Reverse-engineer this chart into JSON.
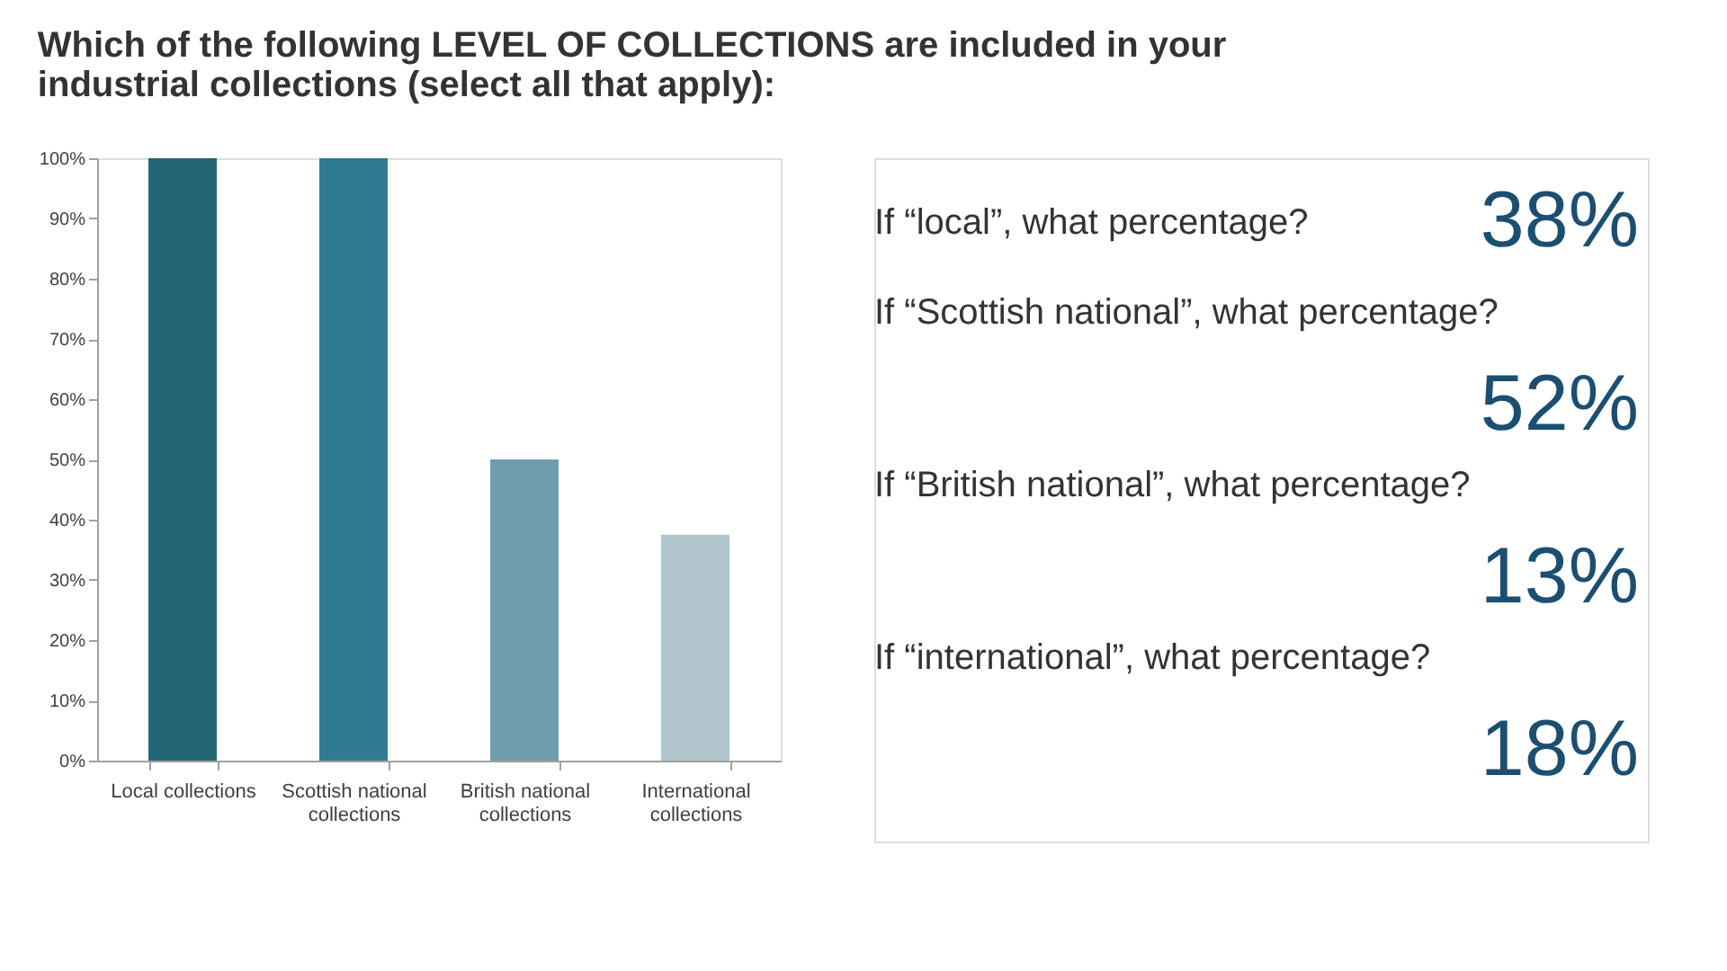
{
  "chart_data": [
    {
      "type": "bar",
      "title": "Which of the following LEVEL OF COLLECTIONS are included in your industrial collections (select all that apply):",
      "categories": [
        "Local collections",
        "Scottish national collections",
        "British national collections",
        "International collections"
      ],
      "values": [
        100,
        100,
        50,
        37.5
      ],
      "colors": [
        "#236674",
        "#2f7b91",
        "#6f9dae",
        "#b0c5cc"
      ],
      "ylim": [
        0,
        100
      ],
      "yticks": [
        {
          "value": 0,
          "label": "0%"
        },
        {
          "value": 10,
          "label": "10%"
        },
        {
          "value": 20,
          "label": "20%"
        },
        {
          "value": 30,
          "label": "30%"
        },
        {
          "value": 40,
          "label": "40%"
        },
        {
          "value": 50,
          "label": "50%"
        },
        {
          "value": 60,
          "label": "60%"
        },
        {
          "value": 70,
          "label": "70%"
        },
        {
          "value": 80,
          "label": "80%"
        },
        {
          "value": 90,
          "label": "90%"
        },
        {
          "value": 100,
          "label": "100%"
        }
      ],
      "grid": false
    },
    {
      "type": "other",
      "annotations": [
        "If “local”, what percentage?",
        "38%",
        "If “Scottish national”, what percentage?",
        "52%",
        "If “British national”, what percentage?",
        "13%",
        "If “international”, what percentage?",
        "18%"
      ]
    }
  ]
}
